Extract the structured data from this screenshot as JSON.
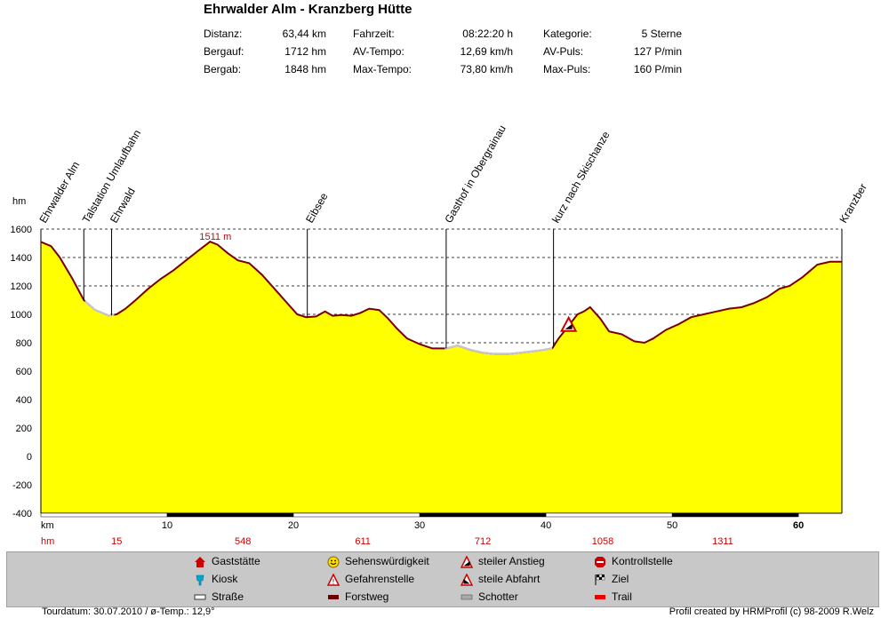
{
  "header": {
    "title": "Ehrwalder Alm - Kranzberg Hütte",
    "stats": [
      [
        {
          "label": "Distanz:",
          "value": "63,44 km"
        },
        {
          "label": "Fahrzeit:",
          "value": "08:22:20 h"
        },
        {
          "label": "Kategorie:",
          "value": "5 Sterne"
        }
      ],
      [
        {
          "label": "Bergauf:",
          "value": "1712 hm"
        },
        {
          "label": "AV-Tempo:",
          "value": "12,69 km/h"
        },
        {
          "label": "AV-Puls:",
          "value": "127 P/min"
        }
      ],
      [
        {
          "label": "Bergab:",
          "value": "1848 hm"
        },
        {
          "label": "Max-Tempo:",
          "value": "73,80 km/h"
        },
        {
          "label": "Max-Puls:",
          "value": "160 P/min"
        }
      ]
    ]
  },
  "chart_data": {
    "type": "area",
    "ylabel": "hm",
    "xlabel": "km",
    "xlim": [
      0,
      63.44
    ],
    "ylim": [
      -400,
      1600
    ],
    "yticks": [
      1600,
      1400,
      1200,
      1000,
      800,
      600,
      400,
      200,
      0,
      -200,
      -400
    ],
    "xticks": [
      10,
      20,
      30,
      40,
      50,
      60
    ],
    "grid": true,
    "colors": {
      "fill": "#ffff00",
      "line": "#7a0000",
      "gravel": "#c8c8c8",
      "axis_alt_label": "#cc0000"
    },
    "series": [
      {
        "x": [
          0,
          0.8,
          1.5,
          2.5,
          3.4,
          4.3,
          5.4,
          6.0,
          6.7,
          7.5,
          8.5,
          9.5,
          10.5,
          11.5,
          12.5,
          13.4,
          14.0,
          14.8,
          15.6,
          16.5,
          17.5,
          18.5,
          19.5,
          20.3,
          21.0,
          21.8,
          22.5,
          23.1,
          23.8,
          24.6,
          25.3,
          26.0,
          26.8,
          27.5,
          28.2,
          29.0,
          30.0,
          31.0,
          32.1,
          33.0,
          34.0,
          35.0,
          36.0,
          37.0,
          38.0,
          39.0,
          39.5,
          40.5,
          41.0,
          41.8,
          42.5,
          43.0,
          43.5,
          44.3,
          45.0,
          46.0,
          47.0,
          47.8,
          48.5,
          49.5,
          50.5,
          51.5,
          52.5,
          53.5,
          54.5,
          55.5,
          56.5,
          57.5,
          58.5,
          59.3,
          60.3,
          61.5,
          62.5,
          63.44
        ],
        "y": [
          1510,
          1480,
          1400,
          1250,
          1100,
          1030,
          990,
          1000,
          1040,
          1100,
          1180,
          1250,
          1310,
          1380,
          1450,
          1511,
          1490,
          1430,
          1380,
          1360,
          1280,
          1180,
          1080,
          1000,
          980,
          985,
          1020,
          990,
          995,
          990,
          1010,
          1040,
          1030,
          970,
          900,
          830,
          790,
          760,
          760,
          780,
          750,
          730,
          720,
          720,
          730,
          740,
          745,
          760,
          830,
          920,
          1000,
          1020,
          1050,
          970,
          880,
          860,
          810,
          800,
          830,
          890,
          930,
          980,
          1000,
          1020,
          1040,
          1050,
          1080,
          1120,
          1180,
          1200,
          1260,
          1350,
          1370,
          1370
        ],
        "surface_gravel_ranges_km": [
          [
            3.5,
            5.8
          ],
          [
            32.0,
            40.5
          ]
        ]
      }
    ],
    "waypoints": [
      {
        "label": "Ehrwalder Alm",
        "km": 0
      },
      {
        "label": "Talstation Umlaufbahn",
        "km": 3.4
      },
      {
        "label": "Ehrwald",
        "km": 5.6
      },
      {
        "label": "Eibsee",
        "km": 21.1
      },
      {
        "label": "Gasthof in Obergrainau",
        "km": 32.1
      },
      {
        "label": "kurz nach Skischanze",
        "km": 40.6
      },
      {
        "label": "Kranzber",
        "km": 63.44
      }
    ],
    "annotations": [
      {
        "text": "1511 m",
        "km": 13.4,
        "y": 1511
      }
    ],
    "hazard_marker": {
      "type": "steiler-anstieg",
      "km": 41.8,
      "y": 920
    },
    "altitude_row_label": "hm",
    "altitude_row": [
      {
        "km": 6,
        "value": "15"
      },
      {
        "km": 16,
        "value": "548"
      },
      {
        "km": 25.5,
        "value": "611"
      },
      {
        "km": 35,
        "value": "712"
      },
      {
        "km": 44.5,
        "value": "1058"
      },
      {
        "km": 54,
        "value": "1311"
      }
    ]
  },
  "legend": {
    "items": [
      {
        "icon": "gaststaette-icon",
        "label": "Gaststätte"
      },
      {
        "icon": "kiosk-icon",
        "label": "Kiosk"
      },
      {
        "icon": "strasse-icon",
        "label": "Straße"
      },
      {
        "icon": "sehenswuerdigkeit-icon",
        "label": "Sehenswürdigkeit"
      },
      {
        "icon": "gefahrenstelle-icon",
        "label": "Gefahrenstelle"
      },
      {
        "icon": "forstweg-icon",
        "label": "Forstweg"
      },
      {
        "icon": "steiler-anstieg-icon",
        "label": "steiler Anstieg"
      },
      {
        "icon": "steile-abfahrt-icon",
        "label": "steile Abfahrt"
      },
      {
        "icon": "schotter-icon",
        "label": "Schotter"
      },
      {
        "icon": "kontrollstelle-icon",
        "label": "Kontrollstelle"
      },
      {
        "icon": "ziel-icon",
        "label": "Ziel"
      },
      {
        "icon": "trail-icon",
        "label": "Trail"
      }
    ]
  },
  "footer": {
    "left": "Tourdatum: 30.07.2010  /  ø-Temp.: 12,9°",
    "right": "Profil created by HRMProfil (c) 98-2009 R.Welz"
  }
}
